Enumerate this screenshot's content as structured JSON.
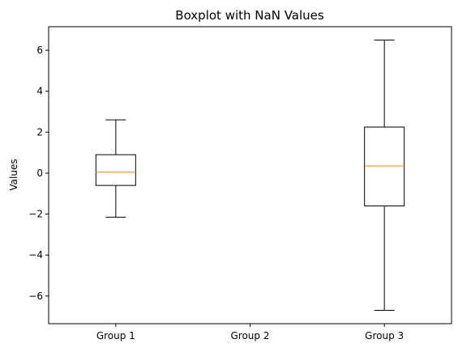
{
  "chart_data": {
    "type": "boxplot",
    "title": "Boxplot with NaN Values",
    "xlabel": "",
    "ylabel": "Values",
    "ylim": [
      -7.35,
      7.15
    ],
    "yticks": [
      -6,
      -4,
      -2,
      0,
      2,
      4,
      6
    ],
    "ytick_labels": [
      "−6",
      "−4",
      "−2",
      "0",
      "2",
      "4",
      "6"
    ],
    "categories": [
      "Group 1",
      "Group 2",
      "Group 3"
    ],
    "boxes": [
      {
        "category": "Group 1",
        "whisker_low": -2.15,
        "q1": -0.6,
        "median": 0.05,
        "q3": 0.9,
        "whisker_high": 2.6
      },
      {
        "category": "Group 2",
        "whisker_low": null,
        "q1": null,
        "median": null,
        "q3": null,
        "whisker_high": null
      },
      {
        "category": "Group 3",
        "whisker_low": -6.7,
        "q1": -1.6,
        "median": 0.35,
        "q3": 2.25,
        "whisker_high": 6.5
      }
    ],
    "grid": false,
    "colors": {
      "box": "#000000",
      "median": "#ff7f0e",
      "axes": "#000000"
    }
  }
}
